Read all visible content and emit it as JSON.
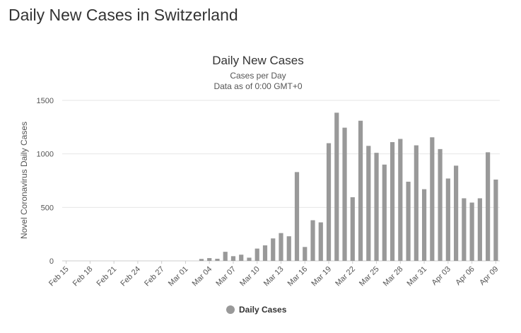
{
  "page": {
    "title": "Daily New Cases in Switzerland"
  },
  "colors": {
    "bar": "#999999",
    "grid": "#e6e6e6",
    "axis": "#cccccc"
  },
  "chart_data": {
    "type": "bar",
    "title": "Daily New Cases",
    "subtitle_lines": [
      "Cases per Day",
      "Data as of 0:00 GMT+0"
    ],
    "ylabel": "Novel Coronavirus Daily Cases",
    "xlabel": "",
    "ylim": [
      0,
      1500
    ],
    "yticks": [
      0,
      500,
      1000,
      1500
    ],
    "grid": true,
    "legend_position": "bottom-center",
    "categories": [
      "Feb 15",
      "Feb 16",
      "Feb 17",
      "Feb 18",
      "Feb 19",
      "Feb 20",
      "Feb 21",
      "Feb 22",
      "Feb 23",
      "Feb 24",
      "Feb 25",
      "Feb 26",
      "Feb 27",
      "Feb 28",
      "Feb 29",
      "Mar 01",
      "Mar 02",
      "Mar 03",
      "Mar 04",
      "Mar 05",
      "Mar 06",
      "Mar 07",
      "Mar 08",
      "Mar 09",
      "Mar 10",
      "Mar 11",
      "Mar 12",
      "Mar 13",
      "Mar 14",
      "Mar 15",
      "Mar 16",
      "Mar 17",
      "Mar 18",
      "Mar 19",
      "Mar 20",
      "Mar 21",
      "Mar 22",
      "Mar 23",
      "Mar 24",
      "Mar 25",
      "Mar 26",
      "Mar 27",
      "Mar 28",
      "Mar 29",
      "Mar 30",
      "Mar 31",
      "Apr 01",
      "Apr 02",
      "Apr 03",
      "Apr 04",
      "Apr 05",
      "Apr 06",
      "Apr 07",
      "Apr 08",
      "Apr 09"
    ],
    "tick_labels": [
      "Feb 15",
      "Feb 18",
      "Feb 21",
      "Feb 24",
      "Feb 27",
      "Mar 01",
      "Mar 04",
      "Mar 07",
      "Mar 10",
      "Mar 13",
      "Mar 16",
      "Mar 19",
      "Mar 22",
      "Mar 25",
      "Mar 28",
      "Mar 31",
      "Apr 03",
      "Apr 06",
      "Apr 09"
    ],
    "series": [
      {
        "name": "Daily Cases",
        "values": [
          0,
          0,
          0,
          0,
          0,
          0,
          0,
          0,
          0,
          0,
          0,
          0,
          0,
          0,
          0,
          0,
          0,
          18,
          26,
          20,
          85,
          44,
          58,
          30,
          115,
          145,
          210,
          260,
          230,
          830,
          130,
          380,
          360,
          1100,
          1385,
          1245,
          595,
          1310,
          1075,
          1010,
          900,
          1110,
          1140,
          740,
          1080,
          670,
          1155,
          1045,
          770,
          890,
          585,
          545,
          585,
          1015,
          760
        ]
      }
    ]
  }
}
